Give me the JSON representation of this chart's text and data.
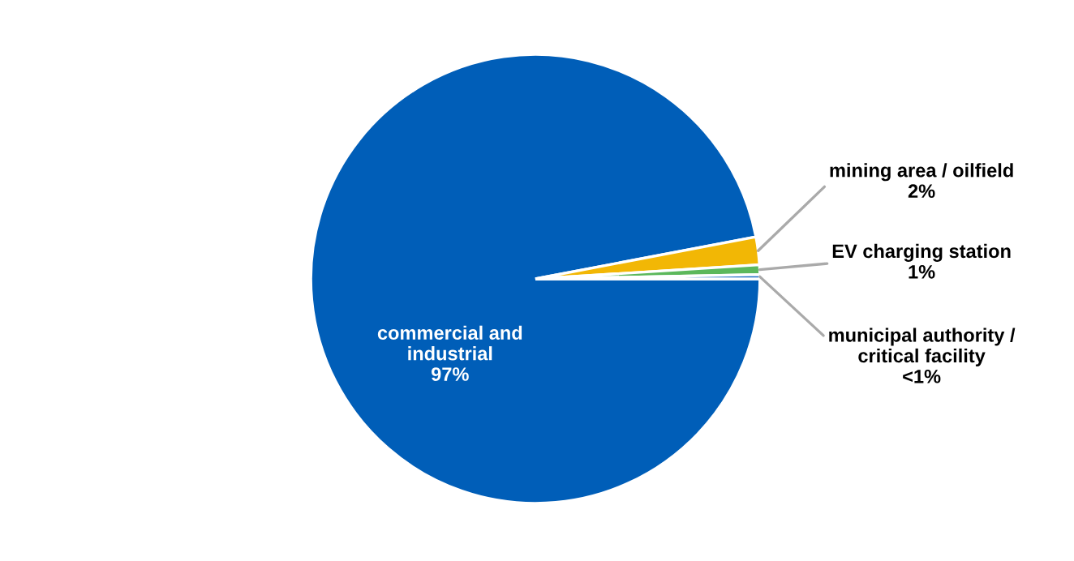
{
  "chart_data": {
    "type": "pie",
    "categories": [
      "commercial and industrial",
      "mining area / oilfield",
      "EV charging station",
      "municipal authority / critical facility"
    ],
    "values": [
      97,
      2,
      0.7,
      0.3
    ],
    "value_labels": [
      "97%",
      "2%",
      "1%",
      "<1%"
    ],
    "colors": [
      "#005eb8",
      "#f2b705",
      "#5cb85c",
      "#1f6fc5"
    ],
    "legend": false
  }
}
